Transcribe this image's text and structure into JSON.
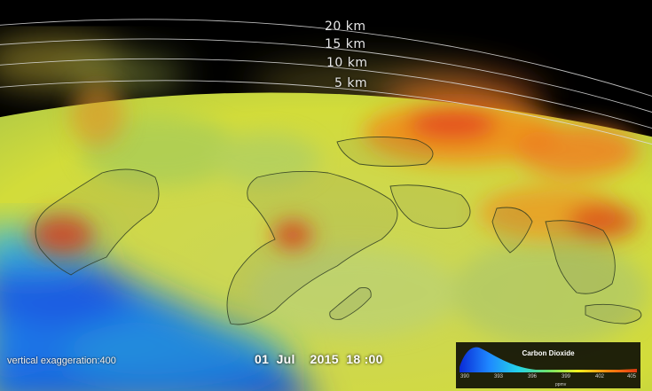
{
  "altitude_labels": [
    "20 km",
    "15 km",
    "10 km",
    "5 km"
  ],
  "vertical_exaggeration": "vertical exaggeration:400",
  "datetime": {
    "day": "01",
    "month": "Jul",
    "year": "2015",
    "time": "18 :00"
  },
  "colorbar": {
    "title": "Carbon Dioxide",
    "unit": "ppmv",
    "ticks": [
      "390",
      "393",
      "396",
      "399",
      "402",
      "405"
    ],
    "colors": [
      "#0a2bd6",
      "#1e88ff",
      "#25d3e8",
      "#6fe36a",
      "#f2f21e",
      "#ff8a10",
      "#e23a12"
    ]
  }
}
